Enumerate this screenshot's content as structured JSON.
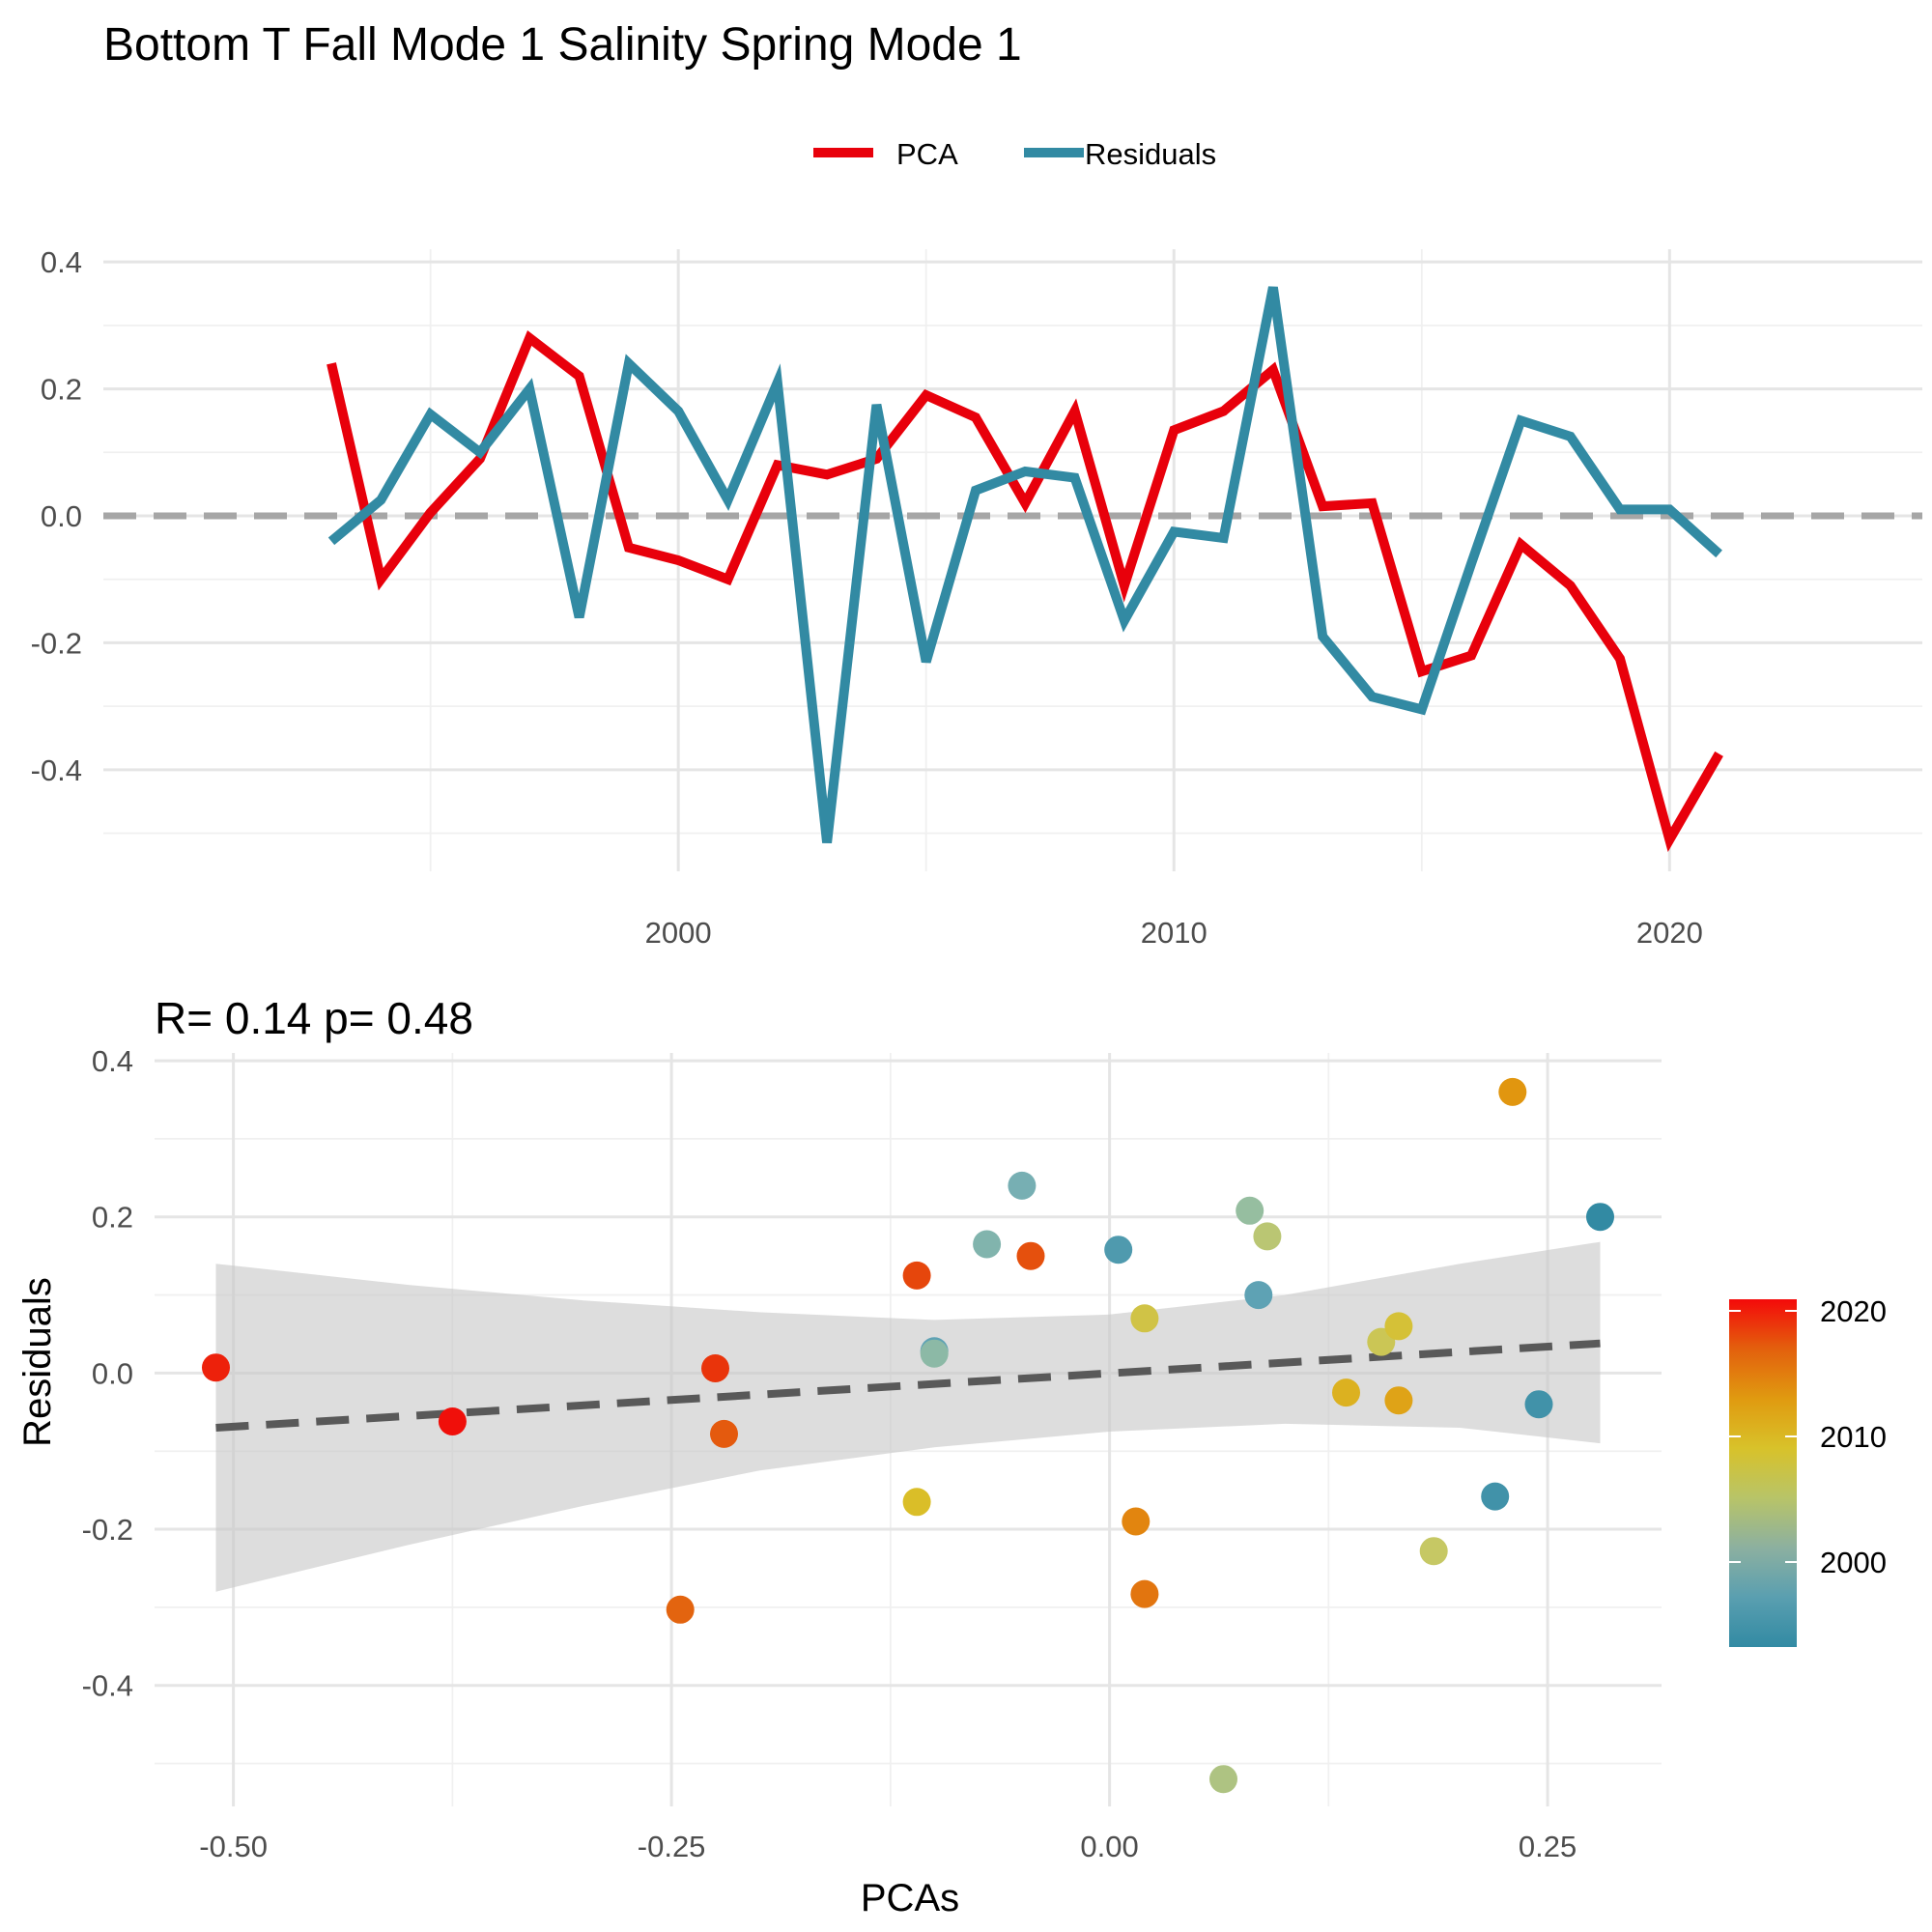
{
  "title": "Bottom T Fall Mode 1 Salinity Spring Mode 1",
  "legend": {
    "items": [
      {
        "label": "PCA",
        "color": "#e8000b"
      },
      {
        "label": "Residuals",
        "color": "#328aa3"
      }
    ]
  },
  "colorbar": {
    "labels": [
      "2020",
      "2010",
      "2000"
    ],
    "colors": [
      "#f40a0a",
      "#e3600d",
      "#e09a10",
      "#d8c22a",
      "#b8c468",
      "#8cb0a0",
      "#5a9fb0",
      "#328aa3"
    ]
  },
  "chart_data": [
    {
      "type": "line",
      "title": "",
      "xlabel": "",
      "ylabel": "",
      "x": [
        1993,
        1994,
        1995,
        1996,
        1997,
        1998,
        1999,
        2000,
        2001,
        2002,
        2003,
        2004,
        2005,
        2006,
        2007,
        2008,
        2009,
        2010,
        2011,
        2012,
        2013,
        2014,
        2015,
        2016,
        2017,
        2018,
        2019,
        2020,
        2021
      ],
      "series": [
        {
          "name": "PCA",
          "color": "#e8000b",
          "values": [
            0.24,
            -0.1,
            0.005,
            0.09,
            0.28,
            0.22,
            -0.05,
            -0.07,
            -0.1,
            0.08,
            0.065,
            0.09,
            0.19,
            0.155,
            0.02,
            0.165,
            -0.11,
            0.135,
            0.165,
            0.23,
            0.015,
            0.02,
            -0.245,
            -0.22,
            -0.045,
            -0.11,
            -0.225,
            -0.51,
            -0.375
          ]
        },
        {
          "name": "Residuals",
          "color": "#328aa3",
          "values": [
            -0.04,
            0.025,
            0.16,
            0.1,
            0.2,
            -0.16,
            0.24,
            0.165,
            0.025,
            0.21,
            -0.515,
            0.175,
            -0.23,
            0.04,
            0.07,
            0.06,
            -0.165,
            -0.025,
            -0.035,
            0.36,
            -0.19,
            -0.285,
            -0.305,
            -0.075,
            0.15,
            0.125,
            0.01,
            0.01,
            -0.06
          ]
        }
      ],
      "reference_line": {
        "y": 0,
        "style": "dashed",
        "color": "#a6a6a6"
      },
      "xticks": [
        2000,
        2010,
        2020
      ],
      "yticks": [
        "0.4",
        "0.2",
        "0.0",
        "-0.2",
        "-0.4"
      ],
      "xlim": [
        1988.4,
        2025.1
      ],
      "ylim": [
        -0.56,
        0.42
      ],
      "grid": true
    },
    {
      "type": "scatter",
      "title": "R= 0.14  p= 0.48",
      "xlabel": "PCAs",
      "ylabel": "Residuals",
      "xticks": [
        "-0.50",
        "-0.25",
        "0.00",
        "0.25"
      ],
      "yticks": [
        "0.4",
        "0.2",
        "0.0",
        "-0.2",
        "-0.4"
      ],
      "xlim": [
        -0.545,
        0.315
      ],
      "ylim": [
        -0.555,
        0.41
      ],
      "grid": true,
      "trend_line": {
        "x": [
          -0.51,
          0.28
        ],
        "y": [
          -0.07,
          0.038
        ],
        "style": "dashed",
        "color": "#595959"
      },
      "confidence_band": {
        "x": [
          -0.51,
          -0.4,
          -0.3,
          -0.2,
          -0.1,
          0.0,
          0.1,
          0.2,
          0.28
        ],
        "upper": [
          0.14,
          0.113,
          0.093,
          0.078,
          0.068,
          0.075,
          0.1,
          0.14,
          0.168
        ],
        "lower": [
          -0.28,
          -0.22,
          -0.17,
          -0.125,
          -0.095,
          -0.075,
          -0.065,
          -0.07,
          -0.09
        ]
      },
      "points": [
        {
          "x": 0.28,
          "y": 0.2,
          "year": 1993
        },
        {
          "x": 0.245,
          "y": -0.04,
          "year": 1994
        },
        {
          "x": 0.005,
          "y": 0.158,
          "year": 1995
        },
        {
          "x": 0.085,
          "y": 0.1,
          "year": 1996
        },
        {
          "x": -0.1,
          "y": 0.028,
          "year": 1996
        },
        {
          "x": 0.22,
          "y": -0.158,
          "year": 1994
        },
        {
          "x": -0.05,
          "y": 0.24,
          "year": 1998
        },
        {
          "x": -0.07,
          "y": 0.165,
          "year": 1999
        },
        {
          "x": -0.1,
          "y": 0.025,
          "year": 2000
        },
        {
          "x": 0.08,
          "y": 0.208,
          "year": 2001
        },
        {
          "x": 0.065,
          "y": -0.52,
          "year": 2003
        },
        {
          "x": 0.09,
          "y": 0.175,
          "year": 2004
        },
        {
          "x": 0.185,
          "y": -0.228,
          "year": 2005
        },
        {
          "x": 0.155,
          "y": 0.04,
          "year": 2006
        },
        {
          "x": 0.02,
          "y": 0.07,
          "year": 2007
        },
        {
          "x": 0.165,
          "y": 0.06,
          "year": 2008
        },
        {
          "x": -0.11,
          "y": -0.165,
          "year": 2009
        },
        {
          "x": 0.135,
          "y": -0.025,
          "year": 2010
        },
        {
          "x": 0.165,
          "y": -0.035,
          "year": 2011
        },
        {
          "x": 0.23,
          "y": 0.36,
          "year": 2012
        },
        {
          "x": 0.015,
          "y": -0.19,
          "year": 2013
        },
        {
          "x": 0.02,
          "y": -0.283,
          "year": 2014
        },
        {
          "x": -0.245,
          "y": -0.303,
          "year": 2015
        },
        {
          "x": -0.22,
          "y": -0.078,
          "year": 2016
        },
        {
          "x": -0.045,
          "y": 0.15,
          "year": 2017
        },
        {
          "x": -0.11,
          "y": 0.125,
          "year": 2018
        },
        {
          "x": -0.225,
          "y": 0.006,
          "year": 2019
        },
        {
          "x": -0.51,
          "y": 0.007,
          "year": 2020
        },
        {
          "x": -0.375,
          "y": -0.062,
          "year": 2021
        }
      ]
    }
  ]
}
